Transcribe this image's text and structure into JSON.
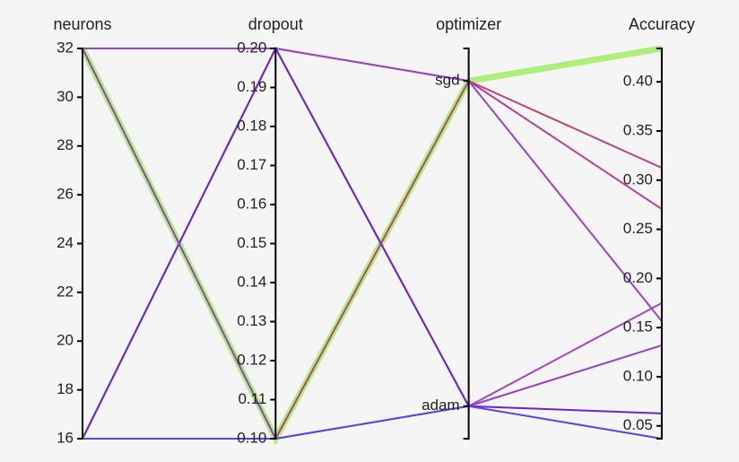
{
  "chart_data": {
    "type": "parallel",
    "dimensions": [
      {
        "label": "neurons",
        "ylim": [
          16,
          32
        ],
        "yticks": [
          16,
          18,
          20,
          22,
          24,
          26,
          28,
          30,
          32
        ]
      },
      {
        "label": "dropout",
        "ylim": [
          0.1,
          0.2
        ],
        "yticks": [
          {
            "value": 0.1,
            "label": "0.10"
          },
          0.11,
          0.12,
          0.13,
          0.14,
          0.15,
          0.16,
          0.17,
          0.18,
          0.19,
          {
            "value": 0.2,
            "label": "0.20"
          }
        ]
      },
      {
        "label": "optimizer",
        "categories": [
          "sgd",
          "adam"
        ]
      },
      {
        "label": "Accuracy",
        "ylim": [
          0.037,
          0.434
        ],
        "yticks": [
          0.05,
          {
            "value": 0.1,
            "label": "0.10"
          },
          0.15,
          {
            "value": 0.2,
            "label": "0.20"
          },
          0.25,
          {
            "value": 0.3,
            "label": "0.30"
          },
          0.35,
          {
            "value": 0.4,
            "label": "0.40"
          }
        ]
      }
    ],
    "lines": [
      {
        "values": [
          32,
          0.1,
          "sgd",
          0.434
        ],
        "color": "#a6ee6e",
        "highlight": true
      },
      {
        "values": [
          16,
          0.1,
          "sgd",
          0.3125
        ],
        "color": "#c0407a"
      },
      {
        "values": [
          32,
          0.2,
          "sgd",
          0.2706
        ],
        "color": "#b5409a"
      },
      {
        "values": [
          16,
          0.2,
          "sgd",
          0.1566
        ],
        "color": "#9b42c8"
      },
      {
        "values": [
          32,
          0.2,
          "adam",
          0.175
        ],
        "color": "#a046c0"
      },
      {
        "values": [
          16,
          0.2,
          "adam",
          0.0627
        ],
        "color": "#6a24d8"
      },
      {
        "values": [
          32,
          0.1,
          "adam",
          0.132
        ],
        "color": "#9a3ec8"
      },
      {
        "values": [
          16,
          0.1,
          "adam",
          0.037
        ],
        "color": "#5a44e4"
      }
    ]
  }
}
